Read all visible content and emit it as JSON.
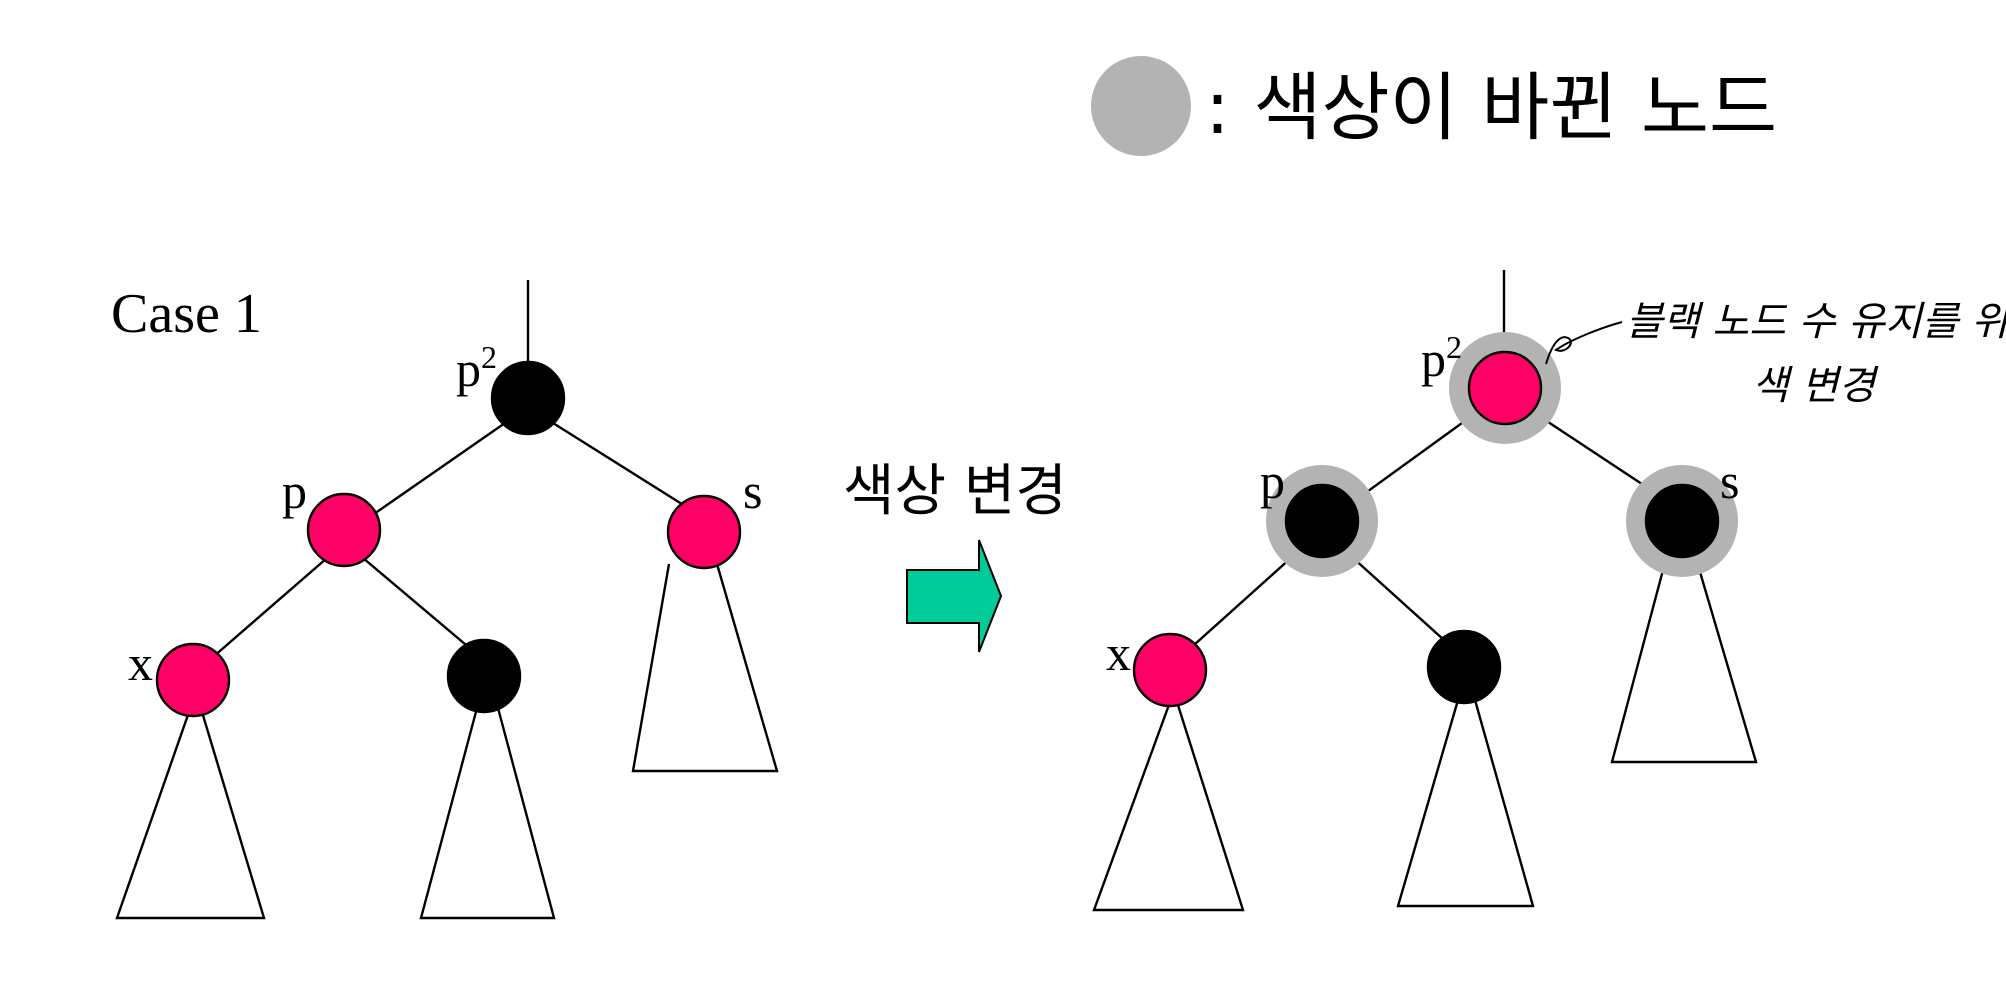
{
  "legend": {
    "text": ": 색상이 바뀐 노드",
    "marker_color": "#b3b3b3"
  },
  "case_title": "Case 1",
  "arrow_label": "색상 변경",
  "annotation": {
    "line1": "블랙 노드 수 유지를 위해",
    "line2": "색 변경"
  },
  "labels": {
    "p2_base": "p",
    "p2_sup": "2",
    "p": "p",
    "s": "s",
    "x": "x"
  },
  "colors": {
    "red": "#ff0066",
    "black": "#000000",
    "highlight": "#b3b3b3",
    "arrow": "#00cc99"
  },
  "trees": {
    "before": {
      "p2": "black",
      "p": "red",
      "s": "red",
      "x": "red",
      "sibling_child": "black"
    },
    "after": {
      "p2": "red",
      "p": "black",
      "s": "black",
      "x": "red",
      "sibling_child": "black"
    }
  }
}
